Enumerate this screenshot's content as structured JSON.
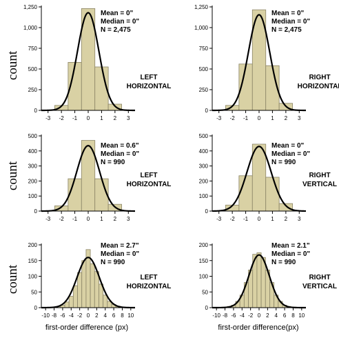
{
  "row_labels": [
    "count",
    "count",
    "count"
  ],
  "xlabels": [
    "first-order difference (px)",
    "first-order difference(px)"
  ],
  "chart_data": [
    {
      "type": "bar",
      "categories": [
        -3,
        -2,
        -1,
        0,
        1,
        2,
        3
      ],
      "values": [
        0,
        60,
        580,
        1230,
        525,
        75,
        0
      ],
      "xlim": [
        -3.5,
        3.5
      ],
      "ylim": [
        0,
        1250
      ],
      "yticks": [
        0,
        250,
        500,
        750,
        1000,
        1250
      ],
      "ytick_labels": [
        "0",
        "250",
        "500",
        "750",
        "1,000",
        "1,250"
      ],
      "xticks": [
        -3,
        -2,
        -1,
        0,
        1,
        2,
        3
      ],
      "xtick_labels": [
        "-3",
        "-2",
        "-1",
        "0",
        "1",
        "2",
        "3"
      ],
      "fit": {
        "mean": 0,
        "sd": 0.8,
        "peak": 1180
      },
      "stats": [
        "Mean = 0\"",
        "Median = 0\"",
        "N = 2,475"
      ],
      "label": [
        "LEFT",
        "HORIZONTAL"
      ]
    },
    {
      "type": "bar",
      "categories": [
        -3,
        -2,
        -1,
        0,
        1,
        2,
        3
      ],
      "values": [
        0,
        60,
        560,
        1215,
        540,
        85,
        0
      ],
      "xlim": [
        -3.5,
        3.5
      ],
      "ylim": [
        0,
        1250
      ],
      "yticks": [
        0,
        250,
        500,
        750,
        1000,
        1250
      ],
      "ytick_labels": [
        "0",
        "250",
        "500",
        "750",
        "1,000",
        "1,250"
      ],
      "xticks": [
        -3,
        -2,
        -1,
        0,
        1,
        2,
        3
      ],
      "xtick_labels": [
        "-3",
        "-2",
        "-1",
        "0",
        "1",
        "2",
        "3"
      ],
      "fit": {
        "mean": 0,
        "sd": 0.8,
        "peak": 1155
      },
      "stats": [
        "Mean = 0\"",
        "Median = 0\"",
        "N = 2,475"
      ],
      "label": [
        "RIGHT",
        "HORIZONTAL"
      ]
    },
    {
      "type": "bar",
      "categories": [
        -3,
        -2,
        -1,
        0,
        1,
        2,
        3
      ],
      "values": [
        0,
        35,
        215,
        470,
        215,
        45,
        0
      ],
      "xlim": [
        -3.5,
        3.5
      ],
      "ylim": [
        0,
        500
      ],
      "yticks": [
        0,
        100,
        200,
        300,
        400,
        500
      ],
      "ytick_labels": [
        "0",
        "100",
        "200",
        "300",
        "400",
        "500"
      ],
      "xticks": [
        -3,
        -2,
        -1,
        0,
        1,
        2,
        3
      ],
      "xtick_labels": [
        "-3",
        "-2",
        "-1",
        "0",
        "1",
        "2",
        "3"
      ],
      "fit": {
        "mean": 0,
        "sd": 0.85,
        "peak": 435
      },
      "stats": [
        "Mean = 0.6\"",
        "Median = 0\"",
        "N = 990"
      ],
      "label": [
        "LEFT",
        "HORIZONTAL"
      ]
    },
    {
      "type": "bar",
      "categories": [
        -3,
        -2,
        -1,
        0,
        1,
        2,
        3
      ],
      "values": [
        0,
        40,
        235,
        445,
        225,
        50,
        0
      ],
      "xlim": [
        -3.5,
        3.5
      ],
      "ylim": [
        0,
        500
      ],
      "yticks": [
        0,
        100,
        200,
        300,
        400,
        500
      ],
      "ytick_labels": [
        "0",
        "100",
        "200",
        "300",
        "400",
        "500"
      ],
      "xticks": [
        -3,
        -2,
        -1,
        0,
        1,
        2,
        3
      ],
      "xtick_labels": [
        "-3",
        "-2",
        "-1",
        "0",
        "1",
        "2",
        "3"
      ],
      "fit": {
        "mean": 0,
        "sd": 0.9,
        "peak": 430
      },
      "stats": [
        "Mean = 0\"",
        "Median = 0\"",
        "N = 990"
      ],
      "label": [
        "RIGHT",
        "VERTICAL"
      ]
    },
    {
      "type": "bar",
      "categories": [
        -10,
        -9,
        -8,
        -7,
        -6,
        -5,
        -4,
        -3,
        -2,
        -1,
        0,
        1,
        2,
        3,
        4,
        5,
        6,
        7,
        8,
        9,
        10
      ],
      "values": [
        0,
        0,
        2,
        4,
        8,
        18,
        36,
        70,
        112,
        150,
        185,
        140,
        115,
        75,
        40,
        20,
        10,
        5,
        2,
        1,
        0
      ],
      "xlim": [
        -11,
        11
      ],
      "ylim": [
        0,
        200
      ],
      "yticks": [
        0,
        50,
        100,
        150,
        200
      ],
      "ytick_labels": [
        "0",
        "50",
        "100",
        "150",
        "200"
      ],
      "xticks": [
        -10,
        -8,
        -6,
        -4,
        -2,
        0,
        2,
        4,
        6,
        8,
        10
      ],
      "xtick_labels": [
        "-10",
        "-8",
        "-6",
        "-4",
        "-2",
        "0",
        "2",
        "4",
        "6",
        "8",
        "10"
      ],
      "fit": {
        "mean": 0,
        "sd": 2.6,
        "peak": 160
      },
      "stats": [
        "Mean = 2.7\"",
        "Median = 0\"",
        "N = 990"
      ],
      "label": [
        "LEFT",
        "HORIZONTAL"
      ]
    },
    {
      "type": "bar",
      "categories": [
        -10,
        -9,
        -8,
        -7,
        -6,
        -5,
        -4,
        -3,
        -2,
        -1,
        0,
        1,
        2,
        3,
        4,
        5,
        6,
        7,
        8,
        9,
        10
      ],
      "values": [
        0,
        0,
        2,
        4,
        8,
        20,
        40,
        80,
        120,
        170,
        175,
        160,
        120,
        80,
        40,
        20,
        8,
        4,
        2,
        1,
        0
      ],
      "xlim": [
        -11,
        11
      ],
      "ylim": [
        0,
        200
      ],
      "yticks": [
        0,
        50,
        100,
        150,
        200
      ],
      "ytick_labels": [
        "0",
        "50",
        "100",
        "150",
        "200"
      ],
      "xticks": [
        -10,
        -8,
        -6,
        -4,
        -2,
        0,
        2,
        4,
        6,
        8,
        10
      ],
      "xtick_labels": [
        "-10",
        "-8",
        "-6",
        "-4",
        "-2",
        "0",
        "2",
        "4",
        "6",
        "8",
        "10"
      ],
      "fit": {
        "mean": 0,
        "sd": 2.4,
        "peak": 168
      },
      "stats": [
        "Mean = 2.1\"",
        "Median = 0\"",
        "N = 990"
      ],
      "label": [
        "RIGHT",
        "VERTICAL"
      ]
    }
  ]
}
